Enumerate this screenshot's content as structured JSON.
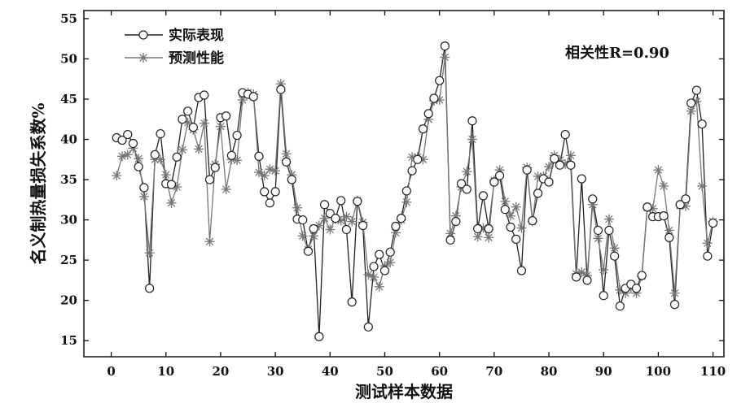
{
  "chart_data": {
    "type": "line",
    "xlabel": "测试样本数据",
    "ylabel": "名义制热量损失系数%",
    "xlim": [
      -5,
      112
    ],
    "ylim": [
      13,
      56
    ],
    "xticks": [
      0,
      10,
      20,
      30,
      40,
      50,
      60,
      70,
      80,
      90,
      100,
      110
    ],
    "yticks": [
      15,
      20,
      25,
      30,
      35,
      40,
      45,
      50,
      55
    ],
    "legend_position": "top-left",
    "annotation": "相关性R=0.90",
    "x": [
      1,
      2,
      3,
      4,
      5,
      6,
      7,
      8,
      9,
      10,
      11,
      12,
      13,
      14,
      15,
      16,
      17,
      18,
      19,
      20,
      21,
      22,
      23,
      24,
      25,
      26,
      27,
      28,
      29,
      30,
      31,
      32,
      33,
      34,
      35,
      36,
      37,
      38,
      39,
      40,
      41,
      42,
      43,
      44,
      45,
      46,
      47,
      48,
      49,
      50,
      51,
      52,
      53,
      54,
      55,
      56,
      57,
      58,
      59,
      60,
      61,
      62,
      63,
      64,
      65,
      66,
      67,
      68,
      69,
      70,
      71,
      72,
      73,
      74,
      75,
      76,
      77,
      78,
      79,
      80,
      81,
      82,
      83,
      84,
      85,
      86,
      87,
      88,
      89,
      90,
      91,
      92,
      93,
      94,
      95,
      96,
      97,
      98,
      99,
      100,
      101,
      102,
      103,
      104,
      105,
      106,
      107,
      108,
      109,
      110
    ],
    "series": [
      {
        "name": "实际表现",
        "marker": "circle",
        "color": "#222222",
        "values": [
          40.2,
          39.9,
          40.6,
          39.5,
          36.6,
          34.0,
          21.5,
          38.1,
          40.7,
          34.5,
          34.4,
          37.8,
          42.5,
          43.5,
          41.5,
          45.2,
          45.5,
          35.0,
          36.5,
          42.7,
          42.9,
          38.0,
          40.5,
          45.8,
          45.6,
          45.3,
          37.9,
          33.5,
          32.1,
          33.5,
          46.2,
          37.2,
          35.0,
          30.1,
          30.0,
          26.1,
          28.9,
          15.5,
          31.9,
          30.8,
          30.2,
          32.4,
          28.8,
          19.8,
          32.3,
          29.3,
          16.7,
          24.2,
          25.7,
          23.7,
          26.0,
          29.2,
          30.2,
          33.6,
          36.1,
          37.5,
          41.3,
          43.2,
          45.1,
          47.3,
          51.6,
          27.5,
          29.8,
          34.5,
          33.8,
          42.3,
          28.9,
          33.0,
          28.9,
          34.7,
          35.5,
          31.3,
          29.1,
          27.6,
          23.7,
          36.2,
          29.9,
          33.3,
          35.1,
          34.7,
          37.6,
          36.8,
          40.6,
          36.8,
          22.9,
          35.1,
          22.5,
          32.6,
          28.7,
          20.6,
          28.7,
          25.5,
          19.3,
          21.5,
          22.0,
          21.5,
          23.1,
          31.6,
          30.4,
          30.4,
          30.5,
          27.8,
          19.5,
          31.9,
          32.6,
          44.5,
          46.1,
          41.9,
          25.5,
          29.6
        ]
      },
      {
        "name": "预测性能",
        "marker": "asterisk",
        "color": "#777777",
        "values": [
          35.5,
          37.9,
          38.1,
          38.9,
          37.6,
          32.9,
          25.9,
          37.5,
          37.5,
          35.6,
          32.1,
          34.1,
          38.7,
          42.1,
          41.2,
          38.8,
          42.0,
          27.3,
          36.9,
          41.6,
          33.8,
          37.5,
          37.4,
          44.9,
          45.8,
          45.6,
          35.9,
          35.5,
          36.3,
          36.1,
          46.9,
          38.2,
          35.6,
          31.5,
          28.0,
          26.3,
          28.0,
          29.3,
          30.2,
          28.8,
          30.1,
          29.9,
          30.4,
          29.8,
          32.4,
          29.7,
          23.2,
          22.9,
          21.7,
          24.3,
          24.7,
          28.4,
          30.0,
          32.2,
          37.8,
          37.8,
          37.5,
          42.5,
          44.8,
          44.9,
          50.2,
          28.3,
          30.5,
          34.1,
          36.0,
          40.0,
          27.9,
          29.0,
          27.8,
          34.9,
          36.2,
          32.3,
          30.5,
          31.6,
          29.0,
          36.5,
          29.8,
          35.4,
          35.4,
          36.6,
          38.0,
          37.4,
          36.9,
          38.0,
          23.3,
          23.5,
          23.1,
          31.9,
          27.7,
          23.8,
          30.1,
          26.5,
          21.3,
          20.9,
          21.5,
          20.9,
          23.0,
          31.5,
          31.4,
          36.2,
          34.2,
          28.7,
          20.9,
          31.8,
          31.7,
          43.5,
          44.7,
          34.2,
          27.1,
          29.8
        ]
      }
    ]
  }
}
